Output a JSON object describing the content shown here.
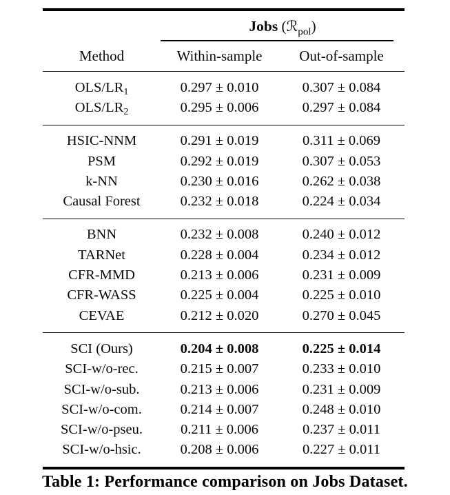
{
  "page": {
    "background_color": "#ffffff",
    "text_color": "#0a0a0a",
    "rule_color": "#000000"
  },
  "table": {
    "title": {
      "dataset": "Jobs",
      "paren_open": "(",
      "metric_symbol": "ℛ",
      "metric_sub": "pol",
      "paren_close": ")"
    },
    "columns": {
      "method": "Method",
      "within": "Within-sample",
      "out": "Out-of-sample"
    },
    "groups": [
      {
        "rows": [
          {
            "method": "OLS/LR",
            "sub": "1",
            "within": "0.297 ± 0.010",
            "out": "0.307 ± 0.084",
            "bold": false
          },
          {
            "method": "OLS/LR",
            "sub": "2",
            "within": "0.295 ± 0.006",
            "out": "0.297 ± 0.084",
            "bold": false
          }
        ]
      },
      {
        "rows": [
          {
            "method": "HSIC-NNM",
            "sub": "",
            "within": "0.291 ± 0.019",
            "out": "0.311 ± 0.069",
            "bold": false
          },
          {
            "method": "PSM",
            "sub": "",
            "within": "0.292 ± 0.019",
            "out": "0.307 ± 0.053",
            "bold": false
          },
          {
            "method": "k-NN",
            "sub": "",
            "within": "0.230 ± 0.016",
            "out": "0.262 ± 0.038",
            "bold": false
          },
          {
            "method": "Causal Forest",
            "sub": "",
            "within": "0.232 ± 0.018",
            "out": "0.224 ± 0.034",
            "bold": false
          }
        ]
      },
      {
        "rows": [
          {
            "method": "BNN",
            "sub": "",
            "within": "0.232 ± 0.008",
            "out": "0.240 ± 0.012",
            "bold": false
          },
          {
            "method": "TARNet",
            "sub": "",
            "within": "0.228 ± 0.004",
            "out": "0.234 ± 0.012",
            "bold": false
          },
          {
            "method": "CFR-MMD",
            "sub": "",
            "within": "0.213 ± 0.006",
            "out": "0.231 ± 0.009",
            "bold": false
          },
          {
            "method": "CFR-WASS",
            "sub": "",
            "within": "0.225 ± 0.004",
            "out": "0.225 ± 0.010",
            "bold": false
          },
          {
            "method": "CEVAE",
            "sub": "",
            "within": "0.212 ± 0.020",
            "out": "0.270 ± 0.045",
            "bold": false
          }
        ]
      },
      {
        "rows": [
          {
            "method": "SCI (Ours)",
            "sub": "",
            "within": "0.204 ± 0.008",
            "out": "0.225 ± 0.014",
            "bold": true
          },
          {
            "method": "SCI-w/o-rec.",
            "sub": "",
            "within": "0.215 ± 0.007",
            "out": "0.233 ± 0.010",
            "bold": false
          },
          {
            "method": "SCI-w/o-sub.",
            "sub": "",
            "within": "0.213 ± 0.006",
            "out": "0.231 ± 0.009",
            "bold": false
          },
          {
            "method": "SCI-w/o-com.",
            "sub": "",
            "within": "0.214 ± 0.007",
            "out": "0.248 ± 0.010",
            "bold": false
          },
          {
            "method": "SCI-w/o-pseu.",
            "sub": "",
            "within": "0.211 ± 0.006",
            "out": "0.237 ± 0.011",
            "bold": false
          },
          {
            "method": "SCI-w/o-hsic.",
            "sub": "",
            "within": "0.208 ± 0.006",
            "out": "0.227 ± 0.011",
            "bold": false
          }
        ]
      }
    ],
    "caption": "Table 1: Performance comparison on Jobs Dataset."
  }
}
